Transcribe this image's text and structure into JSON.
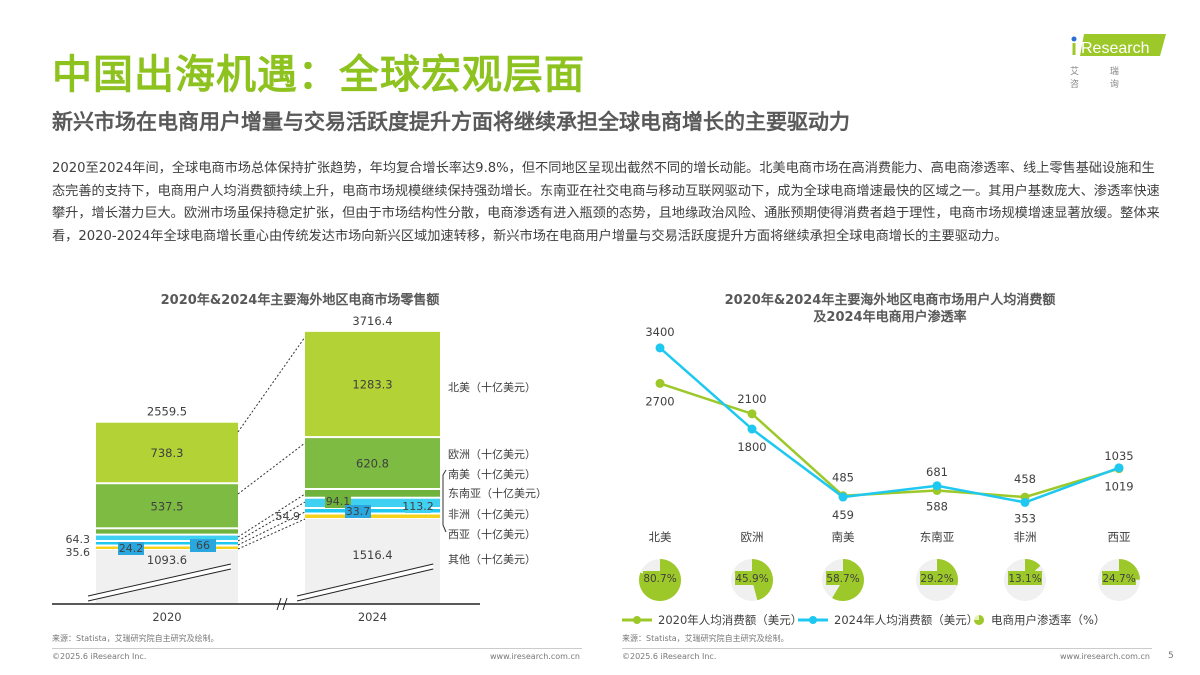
{
  "header": {
    "title": "中国出海机遇：全球宏观层面",
    "subtitle": "新兴市场在电商用户增量与交易活跃度提升方面将继续承担全球电商增长的主要驱动力",
    "logo_text": "iResearch",
    "logo_sub": "艾 瑞 咨 询"
  },
  "body_text": "2020至2024年间，全球电商市场总体保持扩张趋势，年均复合增长率达9.8%，但不同地区呈现出截然不同的增长动能。北美电商市场在高消费能力、高电商渗透率、线上零售基础设施和生态完善的支持下，电商用户人均消费额持续上升，电商市场规模继续保持强劲增长。东南亚在社交电商与移动互联网驱动下，成为全球电商增速最快的区域之一。其用户基数庞大、渗透率快速攀升，增长潜力巨大。欧洲市场虽保持稳定扩张，但由于市场结构性分散，电商渗透有进入瓶颈的态势，且地缘政治风险、通胀预期使得消费者趋于理性，电商市场规模增速显著放缓。整体来看，2020-2024年全球电商增长重心由传统发达市场向新兴区域加速转移，新兴市场在电商用户增量与交易活跃度提升方面将继续承担全球电商增长的主要驱动力。",
  "chart_data": [
    {
      "type": "bar",
      "stacked": true,
      "title": "2020年&2024年主要海外地区电商市场零售额",
      "categories": [
        "2020",
        "2024"
      ],
      "axis_break": true,
      "totals": [
        2559.5,
        3716.4
      ],
      "series": [
        {
          "name": "其他（十亿美元）",
          "values": [
            1093.6,
            1516.4
          ],
          "color": "#f0f0f0"
        },
        {
          "name": "西亚（十亿美元）",
          "values": [
            35.6,
            54.9
          ],
          "color": "#f5d31c"
        },
        {
          "name": "非洲（十亿美元）",
          "values": [
            24.2,
            33.7
          ],
          "color": "#1ec8f0"
        },
        {
          "name": "东南亚（十亿美元）",
          "values": [
            66.0,
            113.2
          ],
          "color": "#3fd0f2"
        },
        {
          "name": "南美（十亿美元）",
          "values": [
            64.3,
            94.1
          ],
          "color": "#6fb23c"
        },
        {
          "name": "欧洲（十亿美元）",
          "values": [
            537.5,
            620.8
          ],
          "color": "#7dbb42"
        },
        {
          "name": "北美（十亿美元）",
          "values": [
            738.3,
            1283.3
          ],
          "color": "#b2d235"
        }
      ],
      "source": "来源：Statista，艾瑞研究院自主研究及绘制。"
    },
    {
      "type": "line",
      "title": "2020年&2024年主要海外地区电商市场用户人均消费额",
      "title2": "及2024年电商用户渗透率",
      "categories": [
        "北美",
        "欧洲",
        "南美",
        "东南亚",
        "非洲",
        "西亚"
      ],
      "series": [
        {
          "name": "2020年人均消费额（美元）",
          "values": [
            2700,
            2100,
            485,
            588,
            458,
            1019
          ],
          "color": "#9dc82a"
        },
        {
          "name": "2024年人均消费额（美元）",
          "values": [
            3400,
            1800,
            459,
            681,
            353,
            1035
          ],
          "color": "#1ec8f0"
        }
      ],
      "pie_series": {
        "name": "电商用户渗透率（%）",
        "values": [
          80.7,
          45.9,
          58.7,
          29.2,
          13.1,
          24.7
        ],
        "labels": [
          "80.7%",
          "45.9%",
          "58.7%",
          "29.2%",
          "13.1%",
          "24.7%"
        ],
        "color": "#9dc82a"
      },
      "source": "来源：Statista，艾瑞研究院自主研究及绘制。"
    }
  ],
  "footer": {
    "copyright": "©2025.6 iResearch Inc.",
    "url": "www.iresearch.com.cn",
    "page": "5"
  }
}
